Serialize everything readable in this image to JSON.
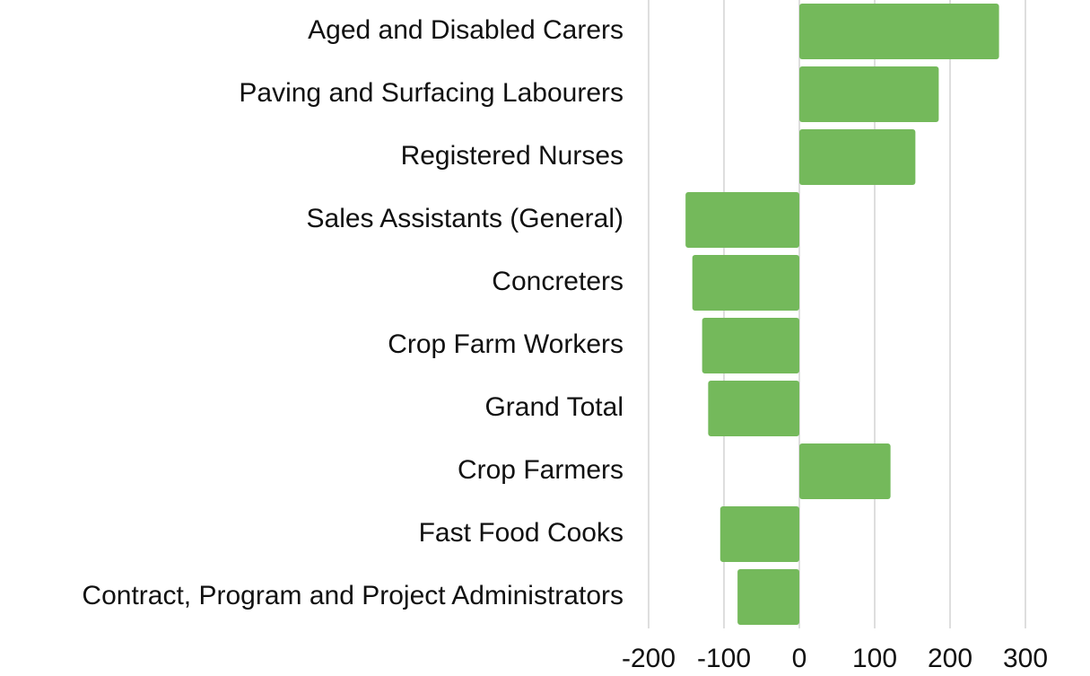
{
  "chart_data": {
    "type": "hbar",
    "categories": [
      "Aged and Disabled Carers",
      "Paving and Surfacing Labourers",
      "Registered Nurses",
      "Sales Assistants (General)",
      "Concreters",
      "Crop Farm Workers",
      "Grand Total",
      "Crop Farmers",
      "Fast Food Cooks",
      "Contract, Program and Project Administrators"
    ],
    "values": [
      265,
      185,
      154,
      -151,
      -142,
      -129,
      -121,
      121,
      -105,
      -82
    ],
    "color": "#74b95b",
    "xlim": [
      -200,
      300
    ],
    "xticks": [
      -200,
      -100,
      0,
      100,
      200,
      300
    ],
    "grid": true
  }
}
